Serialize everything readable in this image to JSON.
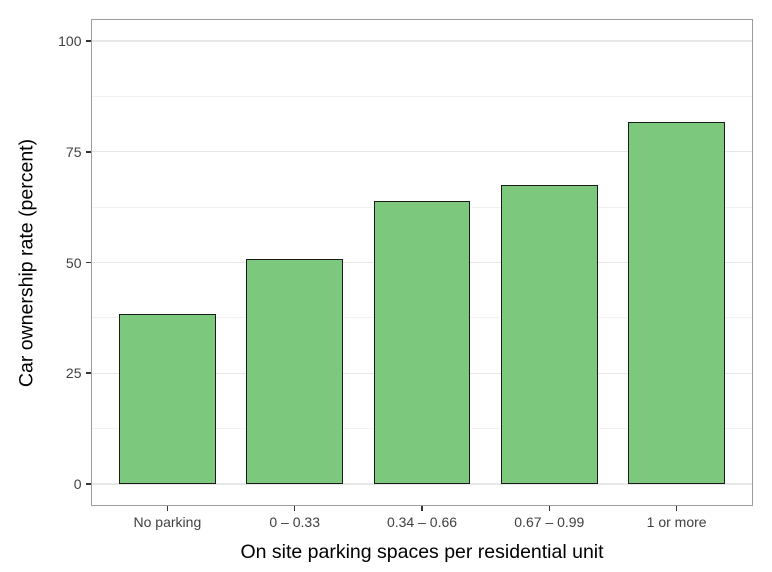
{
  "chart_data": {
    "type": "bar",
    "title": "",
    "xlabel": "On site parking spaces per residential unit",
    "ylabel": "Car ownership rate (percent)",
    "categories": [
      "No parking",
      "0 – 0.33",
      "0.34 – 0.66",
      "0.67 – 0.99",
      "1 or more"
    ],
    "values": [
      38.4,
      50.9,
      64.0,
      67.5,
      81.8
    ],
    "ylim": [
      0,
      100
    ],
    "yticks": [
      0,
      25,
      50,
      75,
      100
    ],
    "yticks_minor": [
      12.5,
      37.5,
      62.5,
      87.5
    ],
    "grid": "horizontal major and minor lines, no vertical gridlines",
    "legend": "none",
    "colors": {
      "bar_fill": "#7cc87d",
      "bar_border": "#1b1b1b",
      "panel_border": "#9c9c9c",
      "grid_major": "#e7e7e7",
      "grid_minor": "#f2f2f2",
      "tick_mark": "#333333",
      "tick_label": "#404040",
      "axis_title": "#000000",
      "background": "#ffffff"
    }
  }
}
